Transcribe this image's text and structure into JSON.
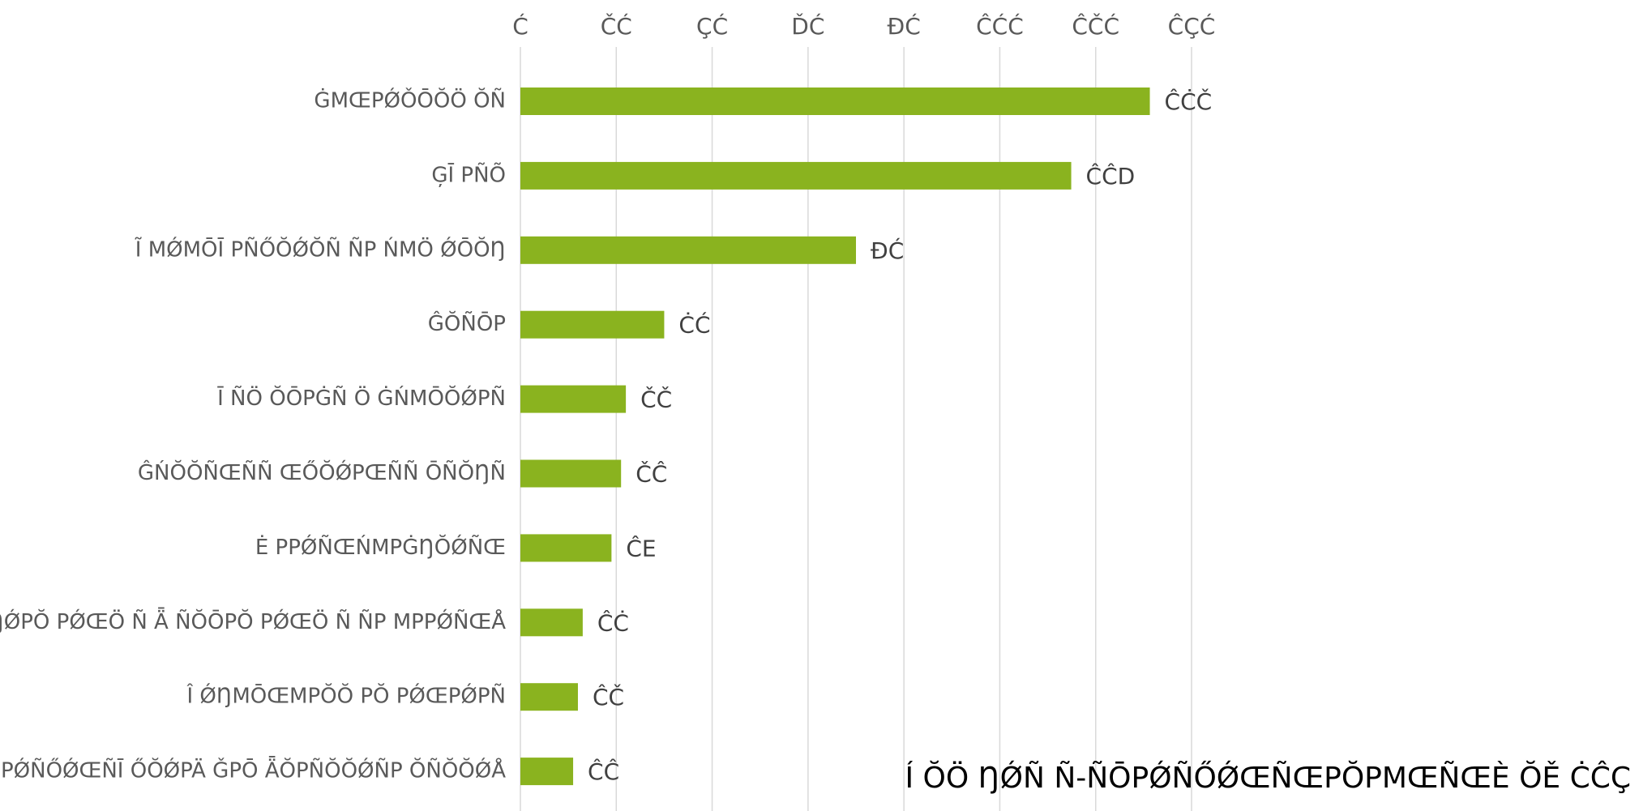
{
  "chart_data": {
    "type": "bar",
    "orientation": "horizontal",
    "categories": [
      "ĠMŒPǾǑŌŎÖ ŎÑ",
      "ĢĪ PÑÕ",
      "Ĩ MǾMŌĪ PÑŐŎǾŎÑ ÑP ŃMÖ ǾŌŎŊ",
      "ĜŎÑŌP",
      "Ī ÑÖ ŎŌPĠÑ Ö ĠŃMŌŎǾPÑ",
      "ĜŃŎŎÑŒÑÑ ŒŐŎǾPŒÑÑ ŌÑŎŊÑ",
      "Ė PPǾÑŒŃMPĠŊŎǾÑŒ",
      "Ė ŊǾPŎ PǾŒÖ Ñ Ǟ ÑŎŌPŎ PǾŒÖ Ñ ÑP MPPǾÑŒÅ",
      "Î ǾŊMŌŒMPŎŎ PŎ PǾŒPǾPÑ",
      "ĜŌPǾÑŐǾŒÑĪ ŐŎǾPÄ ǦPŌ ǞŎPÑŎŎǾÑP ŎÑŎŎǾÅ"
    ],
    "values": [
      1313,
      1149,
      700,
      300,
      220,
      210,
      190,
      130,
      120,
      110
    ],
    "value_labels": [
      "ĈĊČ",
      "ĈĈD",
      "ĐĆ",
      "ĊĆ",
      "ČČ",
      "ČĈ",
      "ĈE",
      "ĈĊ",
      "ĈČ",
      "ĈĈ"
    ],
    "tick_labels": [
      "Ć",
      "ČĆ",
      "ÇĆ",
      "ĎĆ",
      "ĐĆ",
      "ĈĆĆ",
      "ĈČĆ",
      "ĈÇĆ"
    ],
    "xlim": [
      0,
      1400
    ],
    "tick_step": 200,
    "grid": true,
    "bar_color": "#8AB31F",
    "grid_color": "#D9D9D9",
    "axis_position": "top"
  },
  "footnote": "Í ŎÖ ŊǾÑ Ñ-ÑŌPǾÑŐǾŒÑŒPŎPMŒÑŒÈ ŎĚ ĊĈÇ"
}
